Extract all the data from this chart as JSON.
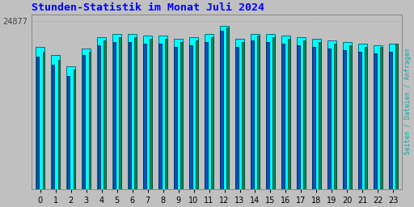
{
  "title": "Stunden-Statistik im Monat Juli 2024",
  "title_color": "#0000ff",
  "title_fontsize": 9.5,
  "right_ylabel": "Seiten / Dateien / Anfragen",
  "right_ylabel_color": "#00aaaa",
  "bg_color": "#c0c0c0",
  "plot_bg_color": "#c0c0c0",
  "hours": [
    0,
    1,
    2,
    3,
    4,
    5,
    6,
    7,
    8,
    9,
    10,
    11,
    12,
    13,
    14,
    15,
    16,
    17,
    18,
    19,
    20,
    21,
    22,
    23
  ],
  "cyan_vals": [
    87,
    82,
    75,
    86,
    93,
    95,
    95,
    94,
    94,
    92,
    93,
    95,
    100,
    92,
    95,
    95,
    94,
    93,
    92,
    91,
    90,
    89,
    88,
    89
  ],
  "blue_vals": [
    81,
    76,
    69,
    82,
    88,
    90,
    90,
    89,
    89,
    87,
    88,
    90,
    97,
    87,
    91,
    90,
    89,
    88,
    87,
    86,
    85,
    84,
    83,
    84
  ],
  "green_vals": [
    84,
    79,
    73,
    84,
    91,
    93,
    93,
    92,
    92,
    90,
    91,
    93,
    99,
    90,
    94,
    93,
    92,
    91,
    90,
    89,
    88,
    87,
    87,
    89
  ],
  "cyan_color": "#00ffff",
  "blue_color": "#0055bb",
  "green_color": "#008855",
  "cyan_edge": "#005577",
  "blue_edge": "#002255",
  "green_edge": "#004433",
  "ytick_label": "24877",
  "ytick_color": "#444444",
  "tick_fontsize": 7
}
